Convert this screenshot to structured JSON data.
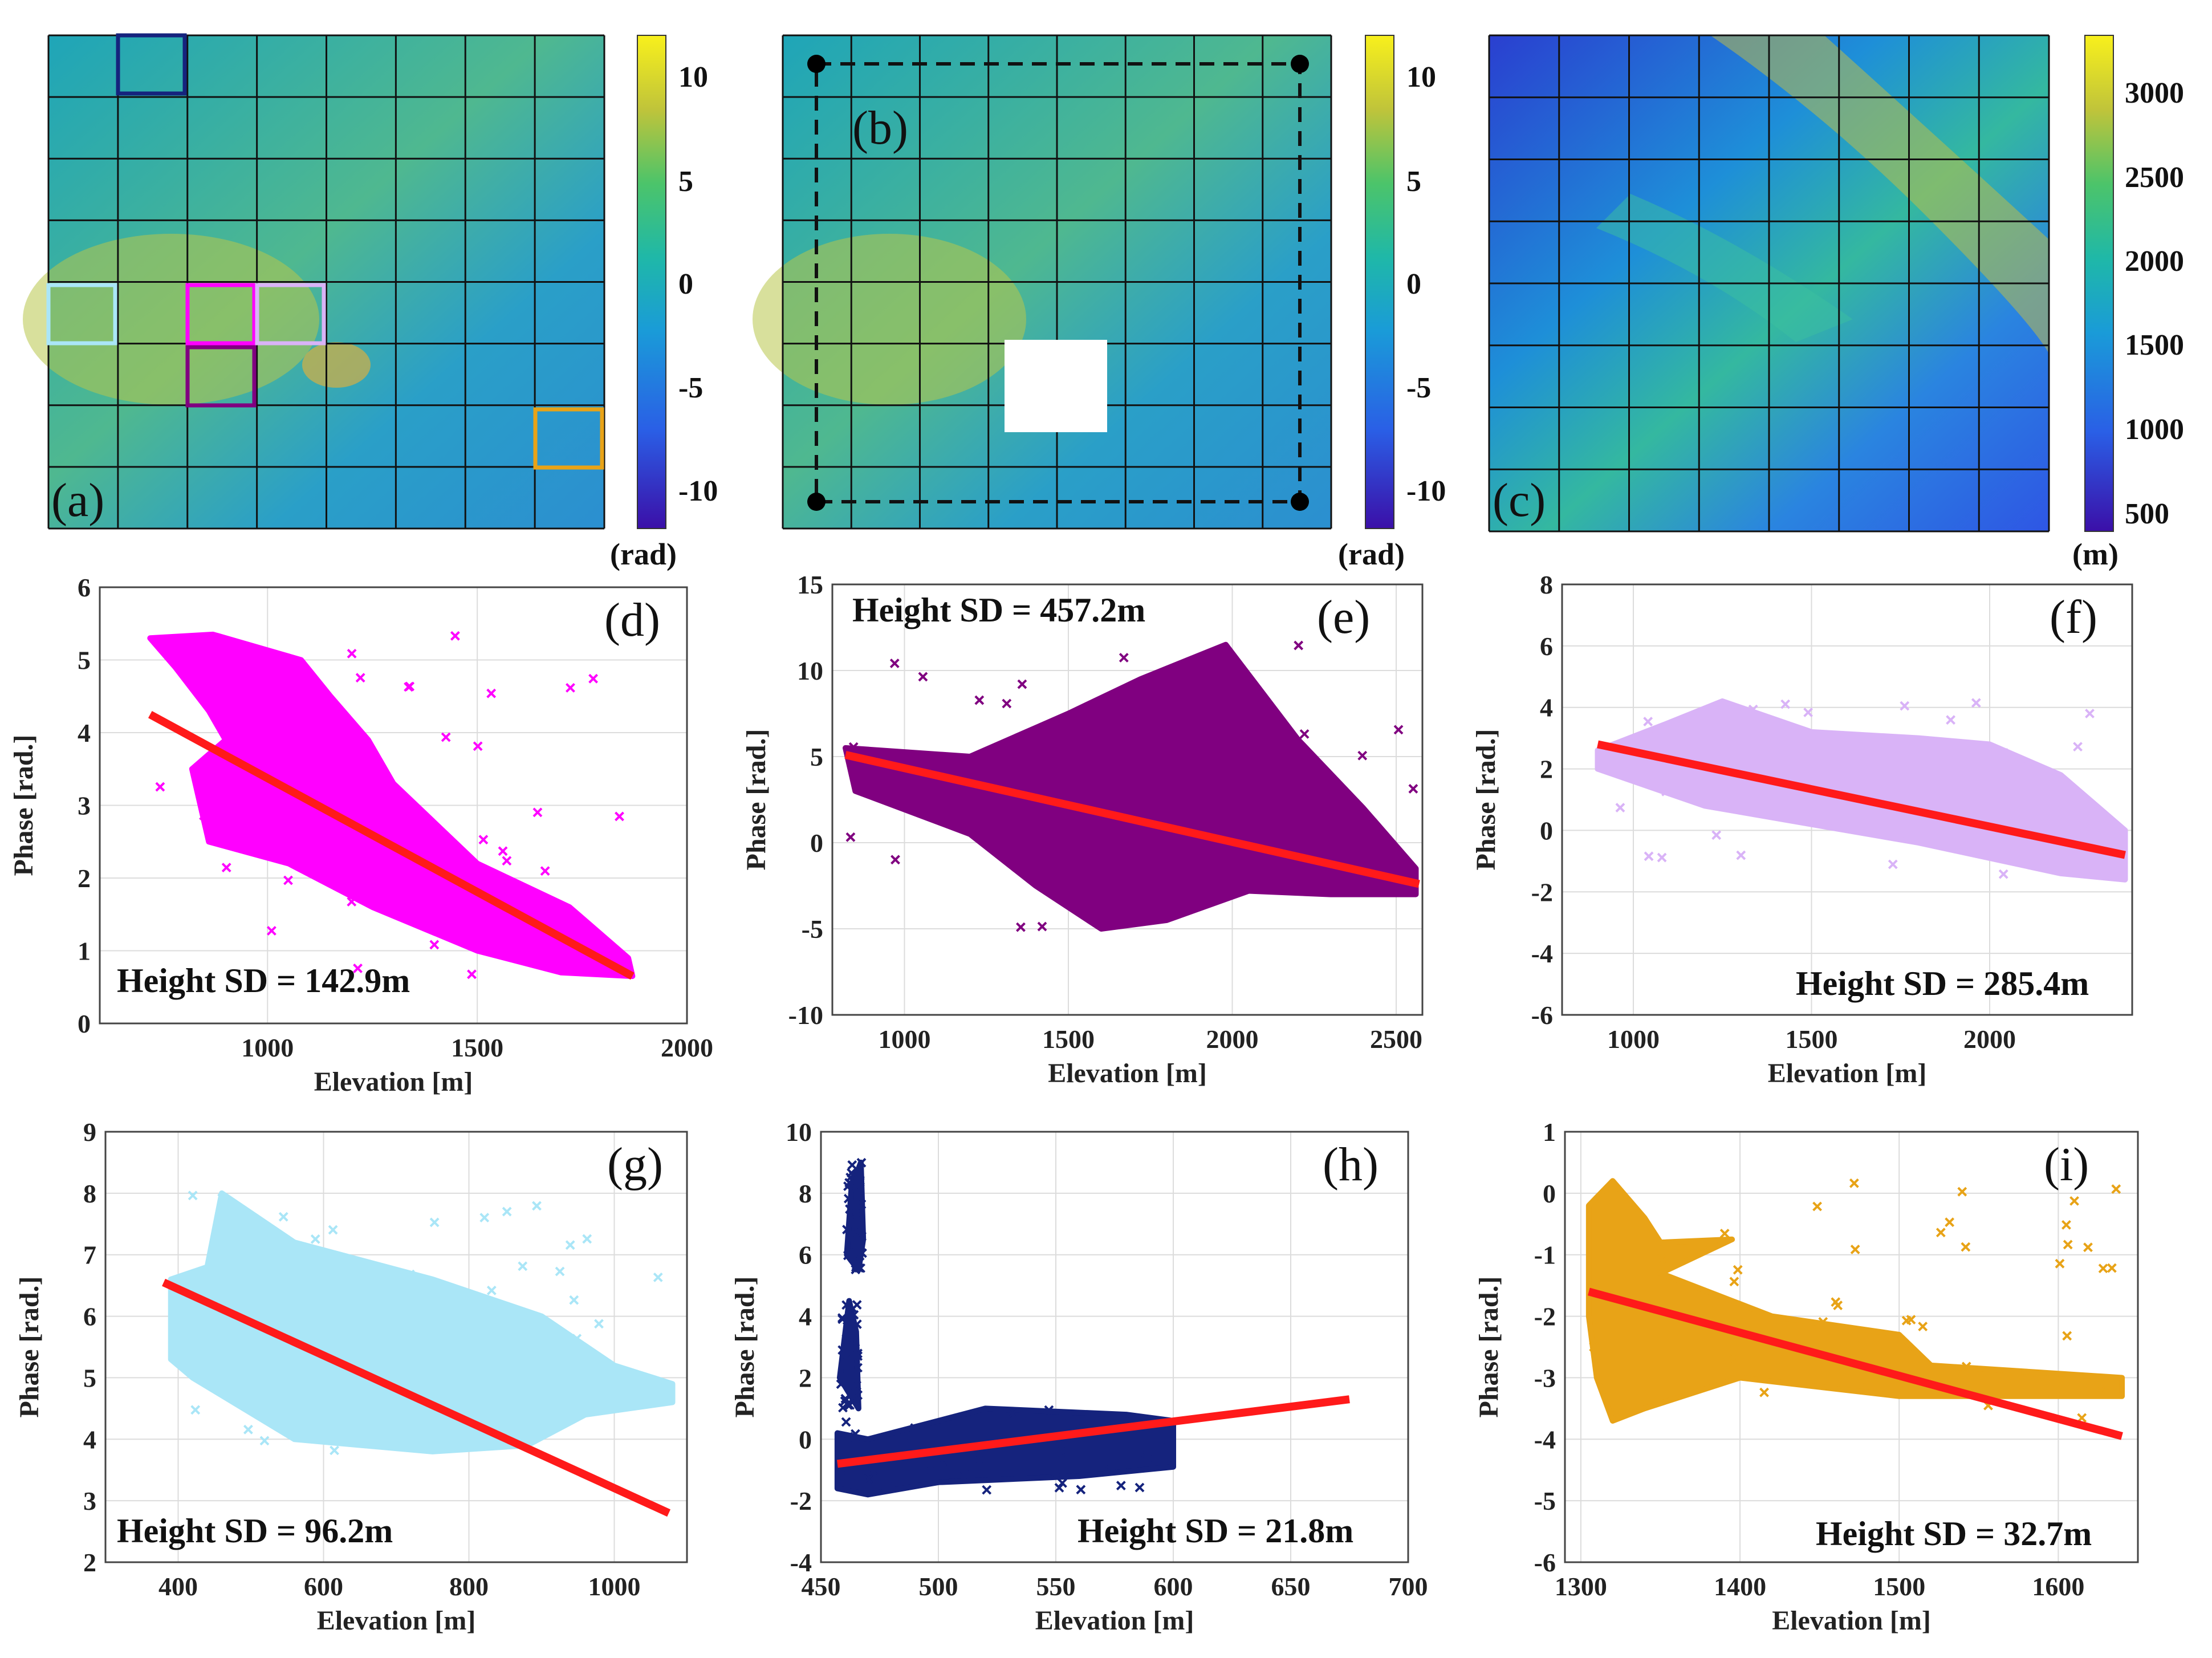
{
  "colors": {
    "magenta": "#ff00ff",
    "purple": "#800080",
    "lavender": "#d9b3f7",
    "lightblue": "#aae6f7",
    "navy": "#15237d",
    "orange": "#e8a317",
    "fit": "#ff1a1a"
  },
  "maps": [
    {
      "label": "(a)",
      "cbar_ticks": [
        "10",
        "5",
        "0",
        "-5",
        "-10"
      ],
      "cbar_unit": "(rad)"
    },
    {
      "label": "(b)",
      "cbar_ticks": [
        "10",
        "5",
        "0",
        "-5",
        "-10"
      ],
      "cbar_unit": "(rad)"
    },
    {
      "label": "(c)",
      "cbar_ticks": [
        "3000",
        "2500",
        "2000",
        "1500",
        "1000",
        "500"
      ],
      "cbar_unit": "(m)"
    }
  ],
  "chart_data": [
    {
      "id": "d",
      "type": "scatter",
      "label": "(d)",
      "annotation": "Height SD = 142.9m",
      "xlabel": "Elevation [m]",
      "ylabel": "Phase [rad.]",
      "xlim": [
        600,
        2000
      ],
      "ylim": [
        0,
        6
      ],
      "xticks": [
        1000,
        1500,
        2000
      ],
      "yticks": [
        0,
        1,
        2,
        3,
        4,
        5,
        6
      ],
      "color": "magenta",
      "fit": {
        "x": [
          720,
          1870
        ],
        "y": [
          4.25,
          0.65
        ]
      }
    },
    {
      "id": "e",
      "type": "scatter",
      "label": "(e)",
      "annotation": "Height SD = 457.2m",
      "xlabel": "Elevation [m]",
      "ylabel": "Phase [rad.]",
      "xlim": [
        780,
        2580
      ],
      "ylim": [
        -10,
        15
      ],
      "xticks": [
        1000,
        1500,
        2000,
        2500
      ],
      "yticks": [
        -10,
        -5,
        0,
        5,
        10,
        15
      ],
      "color": "purple",
      "fit": {
        "x": [
          820,
          2570
        ],
        "y": [
          5.1,
          -2.4
        ]
      }
    },
    {
      "id": "f",
      "type": "scatter",
      "label": "(f)",
      "annotation": "Height SD = 285.4m",
      "xlabel": "Elevation [m]",
      "ylabel": "Phase [rad.]",
      "xlim": [
        800,
        2400
      ],
      "ylim": [
        -6,
        8
      ],
      "xticks": [
        1000,
        1500,
        2000
      ],
      "yticks": [
        -6,
        -4,
        -2,
        0,
        2,
        4,
        6,
        8
      ],
      "color": "lavender",
      "fit": {
        "x": [
          900,
          2380
        ],
        "y": [
          2.8,
          -0.8
        ]
      }
    },
    {
      "id": "g",
      "type": "scatter",
      "label": "(g)",
      "annotation": "Height SD = 96.2m",
      "xlabel": "Elevation [m]",
      "ylabel": "Phase [rad.]",
      "xlim": [
        300,
        1100
      ],
      "ylim": [
        2,
        9
      ],
      "xticks": [
        400,
        600,
        800,
        1000
      ],
      "yticks": [
        2,
        3,
        4,
        5,
        6,
        7,
        8,
        9
      ],
      "color": "lightblue",
      "fit": {
        "x": [
          380,
          1075
        ],
        "y": [
          6.55,
          2.8
        ]
      }
    },
    {
      "id": "h",
      "type": "scatter",
      "label": "(h)",
      "annotation": "Height SD = 21.8m",
      "xlabel": "Elevation [m]",
      "ylabel": "Phase [rad.]",
      "xlim": [
        450,
        700
      ],
      "ylim": [
        -4,
        10
      ],
      "xticks": [
        450,
        500,
        550,
        600,
        650,
        700
      ],
      "yticks": [
        -4,
        -2,
        0,
        2,
        4,
        6,
        8,
        10
      ],
      "color": "navy",
      "fit": {
        "x": [
          457,
          675
        ],
        "y": [
          -0.8,
          1.3
        ]
      }
    },
    {
      "id": "i",
      "type": "scatter",
      "label": "(i)",
      "annotation": "Height SD = 32.7m",
      "xlabel": "Elevation [m]",
      "ylabel": "Phase [rad.]",
      "xlim": [
        1290,
        1650
      ],
      "ylim": [
        -6,
        1
      ],
      "xticks": [
        1300,
        1400,
        1500,
        1600
      ],
      "yticks": [
        -6,
        -5,
        -4,
        -3,
        -2,
        -1,
        0,
        1
      ],
      "color": "orange",
      "fit": {
        "x": [
          1305,
          1640
        ],
        "y": [
          -1.6,
          -3.95
        ]
      }
    }
  ]
}
